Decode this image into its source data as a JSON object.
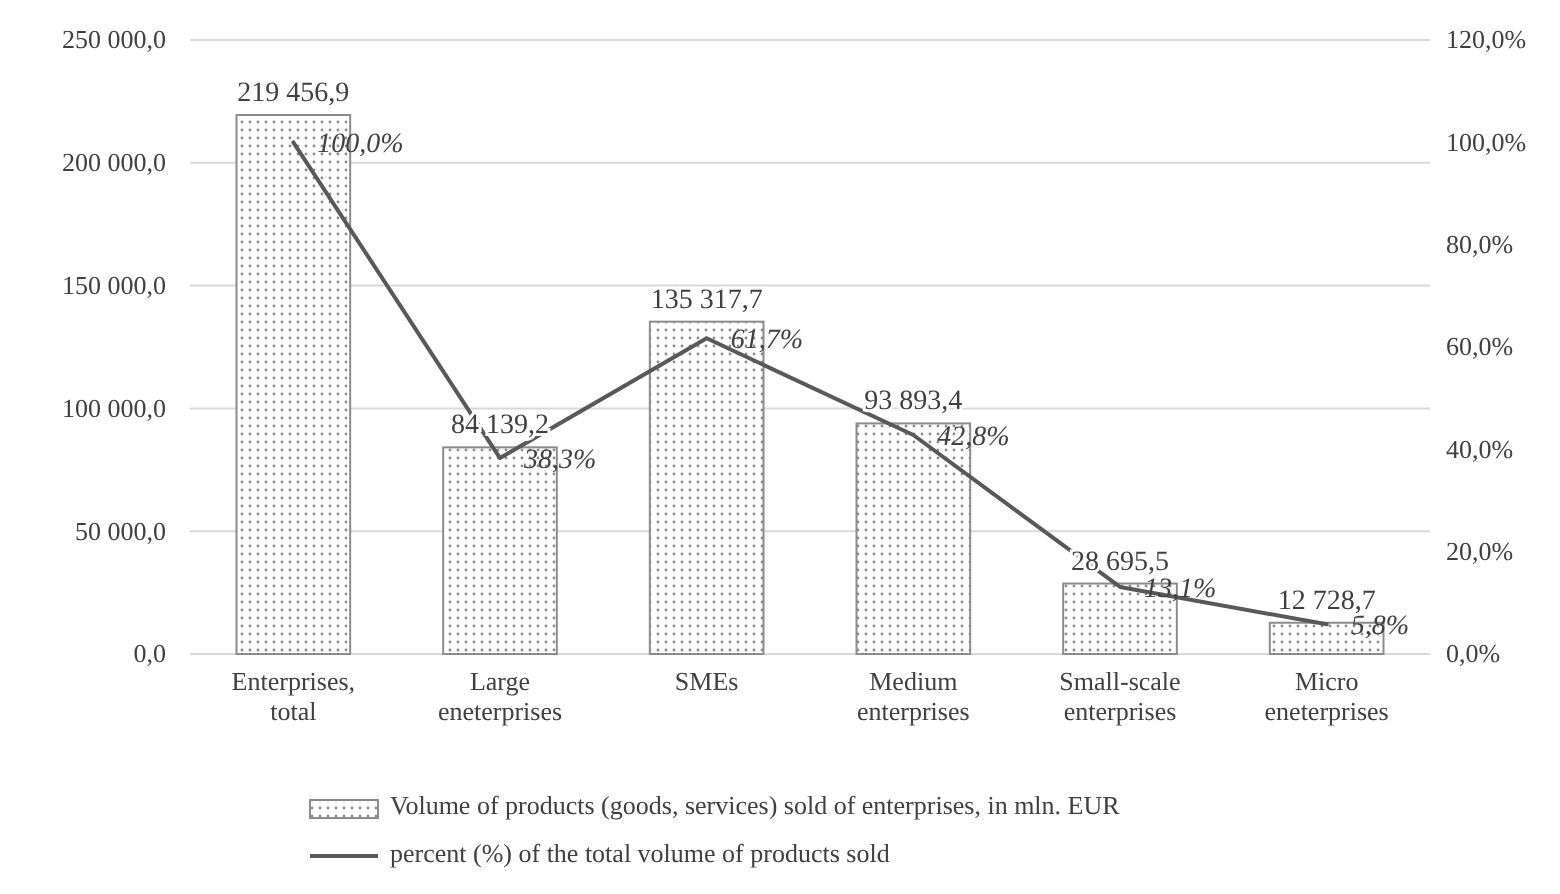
{
  "chart_data": {
    "type": "bar",
    "categories": [
      "Enterprises, total",
      "Large eneterprises",
      "SMEs",
      "Medium enterprises",
      "Small-scale enterprises",
      "Micro eneterprises"
    ],
    "series": [
      {
        "type": "bar",
        "name": "Volume of products (goods, services) sold of enterprises, in mln. EUR",
        "color": "#8c8c8c",
        "values": [
          219456.9,
          84139.2,
          135317.7,
          93893.4,
          28695.5,
          12728.7
        ],
        "value_labels": [
          "219 456,9",
          "84 139,2",
          "135 317,7",
          "93 893,4",
          "28 695,5",
          "12 728,7"
        ]
      },
      {
        "type": "line",
        "axis": "y2",
        "name": "percent (%) of the total volume of products sold",
        "color": "#595959",
        "values": [
          100,
          38.3,
          61.7,
          42.8,
          13.1,
          5.8
        ],
        "value_labels": [
          "100,0%",
          "38,3%",
          "61,7%",
          "42,8%",
          "13,1%",
          "5,8%"
        ]
      }
    ],
    "ylim": [
      0,
      250000
    ],
    "yticks": [
      {
        "value": 0,
        "label": "0,0"
      },
      {
        "value": 50000,
        "label": "50 000,0"
      },
      {
        "value": 100000,
        "label": "100 000,0"
      },
      {
        "value": 150000,
        "label": "150 000,0"
      },
      {
        "value": 200000,
        "label": "200 000,0"
      },
      {
        "value": 250000,
        "label": "250 000,0"
      }
    ],
    "y2lim": [
      0,
      120
    ],
    "y2ticks": [
      {
        "value": 0,
        "label": "0,0%"
      },
      {
        "value": 20,
        "label": "20,0%"
      },
      {
        "value": 40,
        "label": "40,0%"
      },
      {
        "value": 60,
        "label": "60,0%"
      },
      {
        "value": 80,
        "label": "80,0%"
      },
      {
        "value": 100,
        "label": "100,0%"
      },
      {
        "value": 120,
        "label": "120,0%"
      }
    ],
    "grid": "y",
    "legend": "bottom"
  }
}
